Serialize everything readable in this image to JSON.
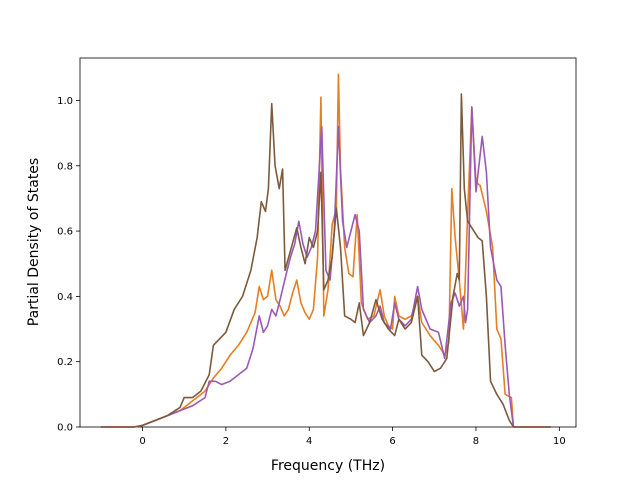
{
  "chart_data": {
    "type": "line",
    "xlabel": "Frequency (THz)",
    "ylabel": "Partial Density of States",
    "xlim": [
      -1.5,
      10.4
    ],
    "ylim": [
      0.0,
      1.13
    ],
    "x_ticks": [
      0,
      2,
      4,
      6,
      8,
      10
    ],
    "x_tick_labels": [
      "0",
      "2",
      "4",
      "6",
      "8",
      "10"
    ],
    "y_ticks": [
      0.0,
      0.2,
      0.4,
      0.6,
      0.8,
      1.0
    ],
    "y_tick_labels": [
      "0.0",
      "0.2",
      "0.4",
      "0.6",
      "0.8",
      "1.0"
    ],
    "grid": false,
    "series": [
      {
        "color": "#e67e22",
        "points": [
          [
            -1.0,
            0.0
          ],
          [
            -0.2,
            0.0
          ],
          [
            0.0,
            0.005
          ],
          [
            0.3,
            0.02
          ],
          [
            0.6,
            0.035
          ],
          [
            0.9,
            0.05
          ],
          [
            1.2,
            0.08
          ],
          [
            1.5,
            0.11
          ],
          [
            1.7,
            0.15
          ],
          [
            1.9,
            0.18
          ],
          [
            2.1,
            0.22
          ],
          [
            2.3,
            0.25
          ],
          [
            2.5,
            0.29
          ],
          [
            2.7,
            0.35
          ],
          [
            2.8,
            0.43
          ],
          [
            2.9,
            0.39
          ],
          [
            3.0,
            0.4
          ],
          [
            3.1,
            0.48
          ],
          [
            3.2,
            0.39
          ],
          [
            3.3,
            0.37
          ],
          [
            3.4,
            0.34
          ],
          [
            3.5,
            0.36
          ],
          [
            3.6,
            0.41
          ],
          [
            3.7,
            0.45
          ],
          [
            3.8,
            0.38
          ],
          [
            3.9,
            0.35
          ],
          [
            4.0,
            0.33
          ],
          [
            4.1,
            0.36
          ],
          [
            4.2,
            0.52
          ],
          [
            4.28,
            1.01
          ],
          [
            4.35,
            0.34
          ],
          [
            4.45,
            0.42
          ],
          [
            4.55,
            0.62
          ],
          [
            4.65,
            0.67
          ],
          [
            4.7,
            1.08
          ],
          [
            4.75,
            0.79
          ],
          [
            4.85,
            0.55
          ],
          [
            4.95,
            0.47
          ],
          [
            5.05,
            0.46
          ],
          [
            5.15,
            0.65
          ],
          [
            5.25,
            0.38
          ],
          [
            5.4,
            0.33
          ],
          [
            5.55,
            0.34
          ],
          [
            5.7,
            0.42
          ],
          [
            5.8,
            0.34
          ],
          [
            5.9,
            0.31
          ],
          [
            6.0,
            0.3
          ],
          [
            6.05,
            0.4
          ],
          [
            6.15,
            0.34
          ],
          [
            6.3,
            0.33
          ],
          [
            6.45,
            0.34
          ],
          [
            6.6,
            0.4
          ],
          [
            6.7,
            0.32
          ],
          [
            6.9,
            0.28
          ],
          [
            7.1,
            0.25
          ],
          [
            7.25,
            0.22
          ],
          [
            7.35,
            0.26
          ],
          [
            7.42,
            0.73
          ],
          [
            7.5,
            0.58
          ],
          [
            7.6,
            0.45
          ],
          [
            7.7,
            0.3
          ],
          [
            7.8,
            0.65
          ],
          [
            7.9,
            0.98
          ],
          [
            8.0,
            0.75
          ],
          [
            8.1,
            0.74
          ],
          [
            8.25,
            0.66
          ],
          [
            8.4,
            0.55
          ],
          [
            8.5,
            0.3
          ],
          [
            8.6,
            0.27
          ],
          [
            8.7,
            0.1
          ],
          [
            8.85,
            0.09
          ],
          [
            8.9,
            0.0
          ],
          [
            9.8,
            0.0
          ]
        ]
      },
      {
        "color": "#9b59b6",
        "points": [
          [
            -1.0,
            0.0
          ],
          [
            -0.2,
            0.0
          ],
          [
            0.0,
            0.005
          ],
          [
            0.3,
            0.02
          ],
          [
            0.6,
            0.035
          ],
          [
            0.9,
            0.05
          ],
          [
            1.2,
            0.065
          ],
          [
            1.5,
            0.09
          ],
          [
            1.6,
            0.14
          ],
          [
            1.75,
            0.14
          ],
          [
            1.9,
            0.13
          ],
          [
            2.1,
            0.14
          ],
          [
            2.3,
            0.16
          ],
          [
            2.5,
            0.18
          ],
          [
            2.65,
            0.24
          ],
          [
            2.8,
            0.34
          ],
          [
            2.9,
            0.29
          ],
          [
            3.0,
            0.31
          ],
          [
            3.1,
            0.36
          ],
          [
            3.2,
            0.34
          ],
          [
            3.3,
            0.39
          ],
          [
            3.45,
            0.47
          ],
          [
            3.55,
            0.52
          ],
          [
            3.65,
            0.56
          ],
          [
            3.75,
            0.63
          ],
          [
            3.85,
            0.56
          ],
          [
            3.95,
            0.52
          ],
          [
            4.05,
            0.55
          ],
          [
            4.15,
            0.6
          ],
          [
            4.3,
            0.92
          ],
          [
            4.4,
            0.48
          ],
          [
            4.5,
            0.45
          ],
          [
            4.6,
            0.6
          ],
          [
            4.7,
            0.92
          ],
          [
            4.8,
            0.63
          ],
          [
            4.9,
            0.55
          ],
          [
            5.0,
            0.6
          ],
          [
            5.1,
            0.65
          ],
          [
            5.2,
            0.6
          ],
          [
            5.3,
            0.36
          ],
          [
            5.45,
            0.32
          ],
          [
            5.6,
            0.34
          ],
          [
            5.7,
            0.37
          ],
          [
            5.8,
            0.32
          ],
          [
            5.95,
            0.3
          ],
          [
            6.05,
            0.38
          ],
          [
            6.15,
            0.33
          ],
          [
            6.3,
            0.31
          ],
          [
            6.45,
            0.33
          ],
          [
            6.6,
            0.43
          ],
          [
            6.7,
            0.36
          ],
          [
            6.9,
            0.3
          ],
          [
            7.1,
            0.29
          ],
          [
            7.25,
            0.21
          ],
          [
            7.4,
            0.38
          ],
          [
            7.5,
            0.41
          ],
          [
            7.6,
            0.37
          ],
          [
            7.7,
            0.4
          ],
          [
            7.75,
            0.32
          ],
          [
            7.8,
            0.36
          ],
          [
            7.9,
            0.98
          ],
          [
            8.0,
            0.72
          ],
          [
            8.15,
            0.89
          ],
          [
            8.25,
            0.78
          ],
          [
            8.35,
            0.55
          ],
          [
            8.5,
            0.45
          ],
          [
            8.6,
            0.43
          ],
          [
            8.7,
            0.25
          ],
          [
            8.8,
            0.1
          ],
          [
            8.9,
            0.0
          ],
          [
            9.8,
            0.0
          ]
        ]
      },
      {
        "color": "#7d5a3c",
        "points": [
          [
            -1.0,
            0.0
          ],
          [
            -0.2,
            0.0
          ],
          [
            0.0,
            0.005
          ],
          [
            0.3,
            0.02
          ],
          [
            0.6,
            0.035
          ],
          [
            0.9,
            0.06
          ],
          [
            1.0,
            0.09
          ],
          [
            1.2,
            0.09
          ],
          [
            1.4,
            0.11
          ],
          [
            1.6,
            0.16
          ],
          [
            1.7,
            0.25
          ],
          [
            1.85,
            0.27
          ],
          [
            2.0,
            0.29
          ],
          [
            2.2,
            0.36
          ],
          [
            2.4,
            0.4
          ],
          [
            2.6,
            0.48
          ],
          [
            2.75,
            0.58
          ],
          [
            2.85,
            0.69
          ],
          [
            2.95,
            0.66
          ],
          [
            3.02,
            0.73
          ],
          [
            3.1,
            0.99
          ],
          [
            3.18,
            0.8
          ],
          [
            3.28,
            0.73
          ],
          [
            3.36,
            0.79
          ],
          [
            3.42,
            0.48
          ],
          [
            3.55,
            0.54
          ],
          [
            3.7,
            0.61
          ],
          [
            3.8,
            0.55
          ],
          [
            3.9,
            0.5
          ],
          [
            4.0,
            0.58
          ],
          [
            4.1,
            0.55
          ],
          [
            4.2,
            0.6
          ],
          [
            4.28,
            0.78
          ],
          [
            4.35,
            0.42
          ],
          [
            4.45,
            0.45
          ],
          [
            4.55,
            0.52
          ],
          [
            4.65,
            0.67
          ],
          [
            4.75,
            0.55
          ],
          [
            4.85,
            0.34
          ],
          [
            5.0,
            0.33
          ],
          [
            5.1,
            0.32
          ],
          [
            5.2,
            0.38
          ],
          [
            5.3,
            0.28
          ],
          [
            5.45,
            0.32
          ],
          [
            5.6,
            0.39
          ],
          [
            5.75,
            0.33
          ],
          [
            5.9,
            0.3
          ],
          [
            6.05,
            0.28
          ],
          [
            6.15,
            0.33
          ],
          [
            6.3,
            0.3
          ],
          [
            6.45,
            0.32
          ],
          [
            6.6,
            0.4
          ],
          [
            6.7,
            0.22
          ],
          [
            6.85,
            0.2
          ],
          [
            7.0,
            0.17
          ],
          [
            7.15,
            0.18
          ],
          [
            7.3,
            0.21
          ],
          [
            7.45,
            0.4
          ],
          [
            7.55,
            0.47
          ],
          [
            7.6,
            0.45
          ],
          [
            7.65,
            1.02
          ],
          [
            7.72,
            0.73
          ],
          [
            7.8,
            0.63
          ],
          [
            7.95,
            0.6
          ],
          [
            8.05,
            0.58
          ],
          [
            8.15,
            0.57
          ],
          [
            8.25,
            0.4
          ],
          [
            8.35,
            0.14
          ],
          [
            8.5,
            0.1
          ],
          [
            8.65,
            0.07
          ],
          [
            8.8,
            0.02
          ],
          [
            8.9,
            0.0
          ],
          [
            9.8,
            0.0
          ]
        ]
      }
    ]
  }
}
